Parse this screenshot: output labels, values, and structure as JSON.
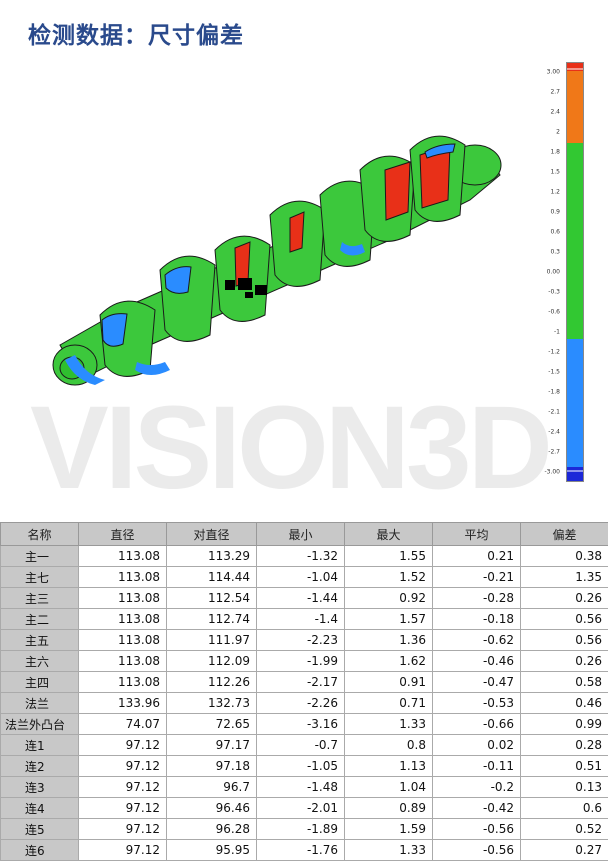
{
  "title": "检测数据：尺寸偏差",
  "watermark": "VISION3D",
  "scale": {
    "labels": [
      "3.00",
      "2.7",
      "2.4",
      "2",
      "1.8",
      "1.5",
      "1.2",
      "0.9",
      "0.6",
      "0.3",
      "0.00",
      "-0.3",
      "-0.6",
      "-1",
      "-1.2",
      "-1.5",
      "-1.8",
      "-2.1",
      "-2.4",
      "-2.7",
      "-3.00"
    ],
    "colors": {
      "high": "#e83018",
      "upper": "#f07818",
      "mid": "#32c832",
      "lower": "#2a8cff",
      "low": "#1c28d8"
    }
  },
  "table": {
    "headers": [
      "名称",
      "直径",
      "对直径",
      "最小",
      "最大",
      "平均",
      "偏差"
    ],
    "rows": [
      [
        "主一",
        "113.08",
        "113.29",
        "-1.32",
        "1.55",
        "0.21",
        "0.38"
      ],
      [
        "主七",
        "113.08",
        "114.44",
        "-1.04",
        "1.52",
        "-0.21",
        "1.35"
      ],
      [
        "主三",
        "113.08",
        "112.54",
        "-1.44",
        "0.92",
        "-0.28",
        "0.26"
      ],
      [
        "主二",
        "113.08",
        "112.74",
        "-1.4",
        "1.57",
        "-0.18",
        "0.56"
      ],
      [
        "主五",
        "113.08",
        "111.97",
        "-2.23",
        "1.36",
        "-0.62",
        "0.56"
      ],
      [
        "主六",
        "113.08",
        "112.09",
        "-1.99",
        "1.62",
        "-0.46",
        "0.26"
      ],
      [
        "主四",
        "113.08",
        "112.26",
        "-2.17",
        "0.91",
        "-0.47",
        "0.58"
      ],
      [
        "法兰",
        "133.96",
        "132.73",
        "-2.26",
        "0.71",
        "-0.53",
        "0.46"
      ],
      [
        "法兰外凸台",
        "74.07",
        "72.65",
        "-3.16",
        "1.33",
        "-0.66",
        "0.99"
      ],
      [
        "连1",
        "97.12",
        "97.17",
        "-0.7",
        "0.8",
        "0.02",
        "0.28"
      ],
      [
        "连2",
        "97.12",
        "97.18",
        "-1.05",
        "1.13",
        "-0.11",
        "0.51"
      ],
      [
        "连3",
        "97.12",
        "96.7",
        "-1.48",
        "1.04",
        "-0.2",
        "0.13"
      ],
      [
        "连4",
        "97.12",
        "96.46",
        "-2.01",
        "0.89",
        "-0.42",
        "0.6"
      ],
      [
        "连5",
        "97.12",
        "96.28",
        "-1.89",
        "1.59",
        "-0.56",
        "0.52"
      ],
      [
        "连6",
        "97.12",
        "95.95",
        "-1.76",
        "1.33",
        "-0.56",
        "0.27"
      ]
    ]
  }
}
